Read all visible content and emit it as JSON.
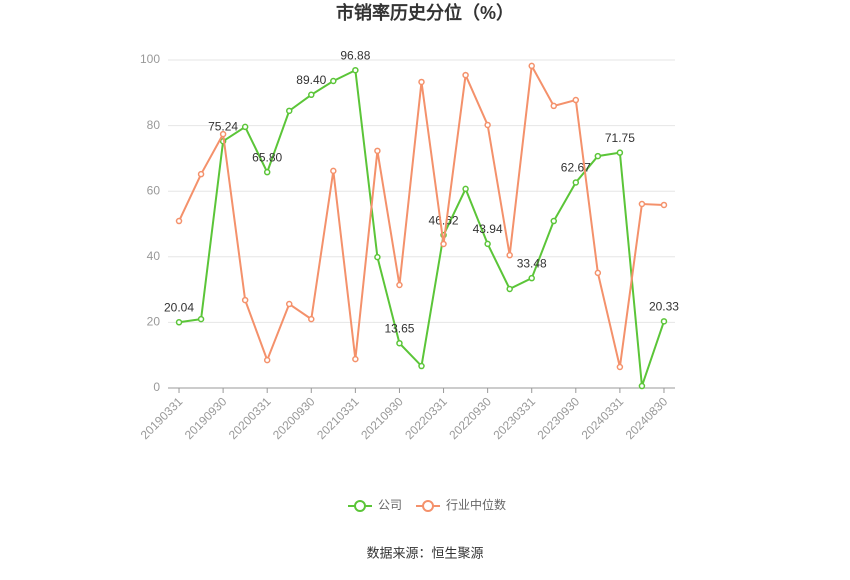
{
  "chart_data": {
    "type": "line",
    "title": "市销率历史分位（%）",
    "categories": [
      "20190331",
      null,
      "20190930",
      null,
      "20200331",
      null,
      "20200930",
      null,
      "20210331",
      null,
      "20210930",
      null,
      "20220331",
      null,
      "20220930",
      null,
      "20230331",
      null,
      "20230930",
      null,
      "20240331",
      null,
      "20240830"
    ],
    "series": [
      {
        "name": "公司",
        "color": "#5bc538",
        "values": [
          20.04,
          21.0,
          75.24,
          79.6,
          65.8,
          84.5,
          89.4,
          93.6,
          96.88,
          39.9,
          13.65,
          6.7,
          46.62,
          60.7,
          43.94,
          30.2,
          33.48,
          50.9,
          62.67,
          70.7,
          71.75,
          0.6,
          20.33
        ],
        "value_labels": [
          "20.04",
          null,
          "75.24",
          null,
          "65.80",
          null,
          "89.40",
          null,
          "96.88",
          null,
          "13.65",
          null,
          "46.62",
          null,
          "43.94",
          null,
          "33.48",
          null,
          "62.67",
          null,
          "71.75",
          null,
          "20.33"
        ]
      },
      {
        "name": "行业中位数",
        "color": "#f4916b",
        "values": [
          50.9,
          65.2,
          77.4,
          26.8,
          8.5,
          25.6,
          21.0,
          66.2,
          8.8,
          72.3,
          31.4,
          93.3,
          43.9,
          95.4,
          80.2,
          40.5,
          98.2,
          86.0,
          87.8,
          35.1,
          6.4,
          56.1,
          55.8
        ]
      }
    ],
    "ylim": [
      0,
      100
    ],
    "yticks": [
      0,
      20,
      40,
      60,
      80,
      100
    ],
    "grid": true,
    "legend": "bottom",
    "source": "数据来源：恒生聚源"
  }
}
